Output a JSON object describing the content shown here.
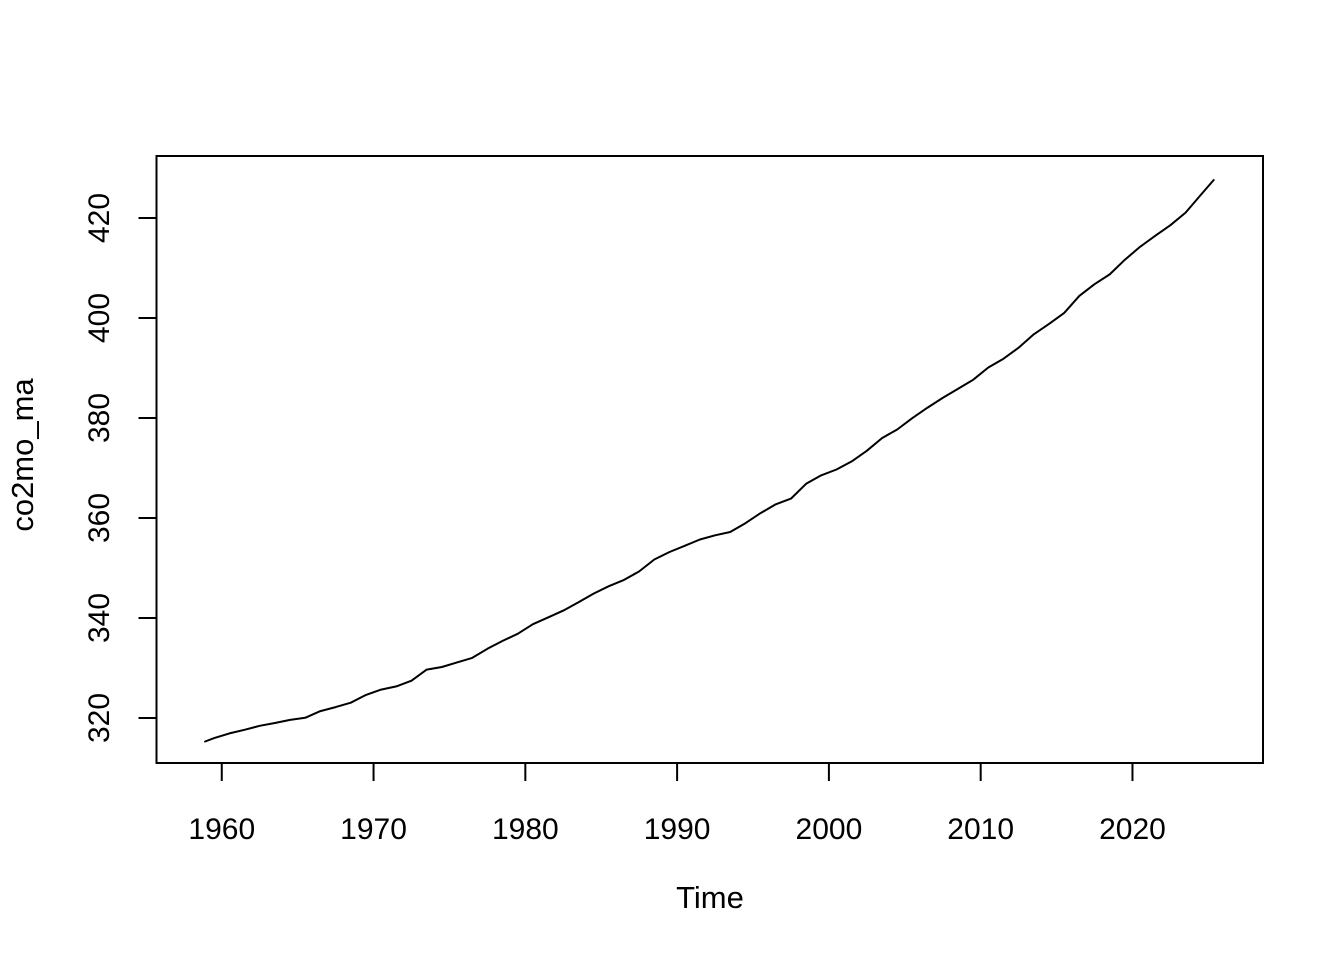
{
  "figure": {
    "background_color": "#ffffff",
    "foreground_color": "#000000"
  },
  "chart_data": {
    "type": "line",
    "title": "",
    "xlabel": "Time",
    "ylabel": "co2mo_ma",
    "grid": false,
    "legend": "none",
    "line_color": "#000000",
    "x_range": [
      1955.7,
      2028.6
    ],
    "y_range": [
      311.0,
      432.4
    ],
    "x_ticks": [
      1960,
      1970,
      1980,
      1990,
      2000,
      2010,
      2020
    ],
    "y_ticks": [
      320,
      340,
      360,
      380,
      400,
      420
    ],
    "series": [
      {
        "name": "co2mo_ma",
        "x": [
          1958.9,
          1959.5,
          1960.5,
          1961.5,
          1962.5,
          1963.5,
          1964.5,
          1965.5,
          1966.5,
          1967.5,
          1968.5,
          1969.5,
          1970.5,
          1971.5,
          1972.5,
          1973.5,
          1974.5,
          1975.5,
          1976.5,
          1977.5,
          1978.5,
          1979.5,
          1980.5,
          1981.5,
          1982.5,
          1983.5,
          1984.5,
          1985.5,
          1986.5,
          1987.5,
          1988.5,
          1989.5,
          1990.5,
          1991.5,
          1992.5,
          1993.5,
          1994.5,
          1995.5,
          1996.5,
          1997.5,
          1998.5,
          1999.5,
          2000.5,
          2001.5,
          2002.5,
          2003.5,
          2004.5,
          2005.5,
          2006.5,
          2007.5,
          2008.5,
          2009.5,
          2010.5,
          2011.5,
          2012.5,
          2013.5,
          2014.5,
          2015.5,
          2016.5,
          2017.5,
          2018.5,
          2019.5,
          2020.5,
          2021.5,
          2022.5,
          2023.5,
          2024.5,
          2025.35
        ],
        "y": [
          315.3,
          315.98,
          316.91,
          317.64,
          318.45,
          318.99,
          319.62,
          320.04,
          321.37,
          322.18,
          323.05,
          324.62,
          325.68,
          326.32,
          327.46,
          329.68,
          330.19,
          331.12,
          332.03,
          333.84,
          335.41,
          336.84,
          338.76,
          340.12,
          341.48,
          343.15,
          344.87,
          346.35,
          347.61,
          349.31,
          351.69,
          353.2,
          354.45,
          355.7,
          356.54,
          357.21,
          358.96,
          360.97,
          362.74,
          363.88,
          366.84,
          368.54,
          369.71,
          371.32,
          373.45,
          375.98,
          377.7,
          379.98,
          382.09,
          384.02,
          385.83,
          387.64,
          390.1,
          391.85,
          394.06,
          396.74,
          398.81,
          401.01,
          404.41,
          406.76,
          408.72,
          411.66,
          414.24,
          416.45,
          418.56,
          421.08,
          424.61,
          427.6
        ]
      }
    ]
  }
}
